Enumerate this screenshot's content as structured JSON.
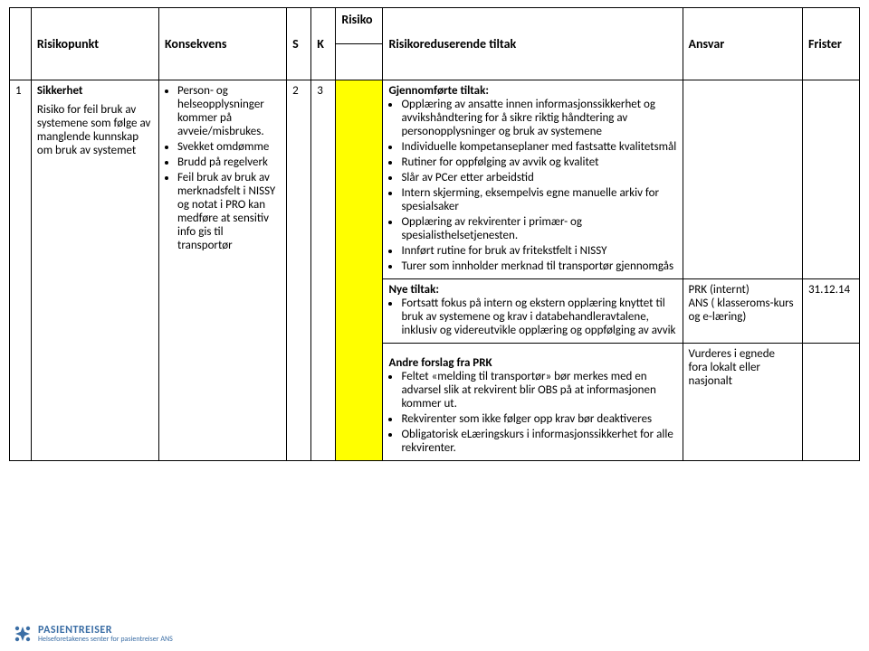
{
  "table": {
    "headers": {
      "risikopunkt": "Risikopunkt",
      "konsekvens": "Konsekvens",
      "s": "S",
      "k": "K",
      "risiko": "Risiko",
      "tiltak": "Risikoreduserende tiltak",
      "ansvar": "Ansvar",
      "frister": "Frister"
    },
    "row": {
      "idx": "1",
      "risikopunkt": {
        "title": "Sikkerhet",
        "text": "Risiko for feil bruk av systemene som følge av manglende kunnskap om bruk av systemet"
      },
      "konsekvens": [
        "Person- og helseopplysninger kommer på avveie/misbrukes.",
        "Svekket omdømme",
        "Brudd på regelverk",
        "Feil bruk av bruk av merknadsfelt i NISSY og notat i PRO kan medføre at sensitiv info gis til transportør"
      ],
      "s": "2",
      "k": "3",
      "risk_color": "#ffff00",
      "tiltak": {
        "gjennom_label": "Gjennomførte tiltak:",
        "gjennom": [
          "Opplæring av ansatte innen informasjonssikkerhet og avvikshåndtering for å sikre riktig håndtering av personopplysninger og bruk av systemene",
          "Individuelle kompetanseplaner med fastsatte kvalitetsmål",
          "Rutiner for oppfølging av avvik og kvalitet",
          "Slår av PCer etter arbeidstid",
          "Intern skjerming, eksempelvis egne manuelle arkiv for spesialsaker",
          "Opplæring av rekvirenter i primær- og spesialisthelsetjenesten.",
          "Innført rutine for bruk av fritekstfelt i NISSY",
          "Turer som innholder merknad til transportør gjennomgås"
        ],
        "nye_label": "Nye tiltak:",
        "nye": [
          "Fortsatt fokus på intern og ekstern opplæring knyttet til bruk av systemene og krav i databehandleravtalene, inklusiv og videreutvikle opplæring og oppfølging av avvik"
        ],
        "andre_label": "Andre forslag fra PRK",
        "andre": [
          "Feltet «melding til transportør» bør merkes med en advarsel slik at rekvirent blir OBS på at informasjonen kommer ut.",
          "Rekvirenter som ikke følger opp krav bør deaktiveres",
          "Obligatorisk eLæringskurs i informasjonssikkerhet for alle rekvirenter."
        ]
      },
      "ansvar_nye": "PRK (internt)\nANS ( klasseroms-kurs og e-læring)",
      "frist_nye": "31.12.14",
      "ansvar_andre": "Vurderes i egnede fora lokalt eller nasjonalt"
    }
  },
  "logo": {
    "line1": "PASIENTREISER",
    "line2": "Helseforetakenes senter for pasientreiser ANS",
    "icon_color": "#3b6ea5"
  }
}
